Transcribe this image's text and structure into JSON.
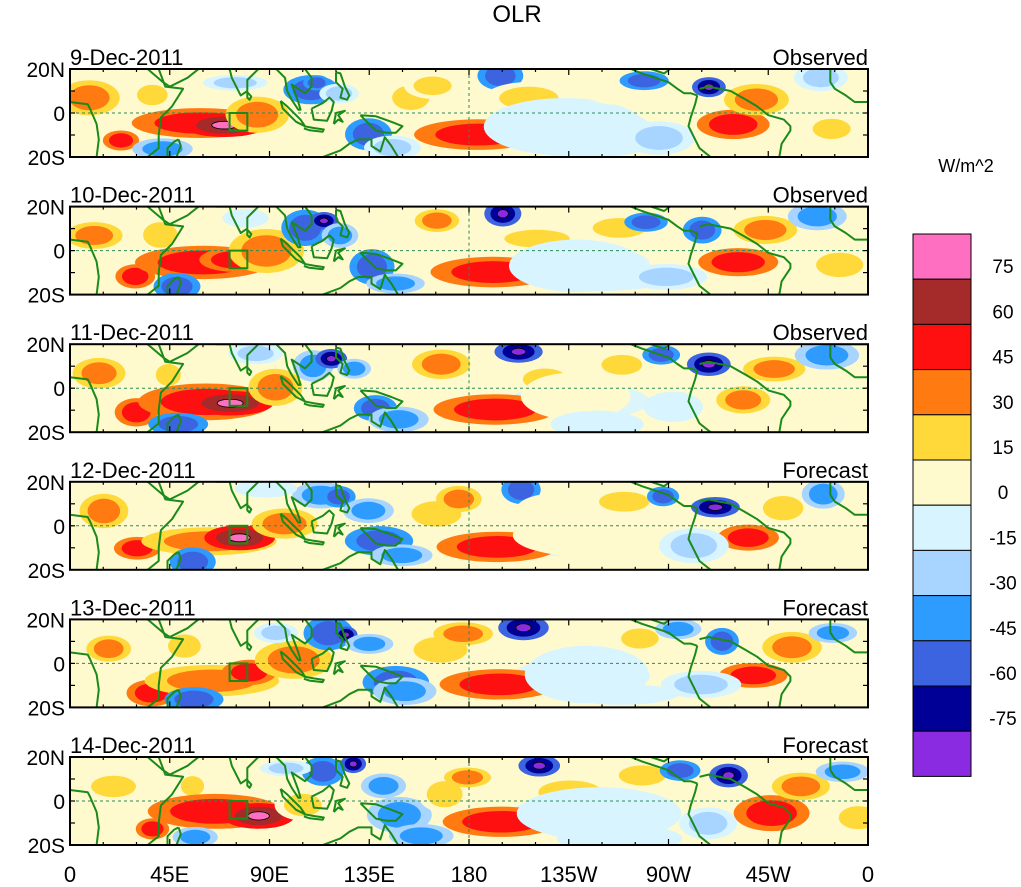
{
  "chart_data": {
    "type": "heatmap",
    "title": "OLR",
    "units": "W/m^2",
    "xlabel": "",
    "ylabel": "",
    "x_ticks": [
      "0",
      "45E",
      "90E",
      "135E",
      "180",
      "135W",
      "90W",
      "45W",
      "0"
    ],
    "y_ticks": [
      "20N",
      "0",
      "20S"
    ],
    "xlim": [
      0,
      360
    ],
    "ylim": [
      -20,
      20
    ],
    "legend": {
      "position": "right",
      "labels": [
        "75",
        "60",
        "45",
        "30",
        "15",
        "0",
        "-15",
        "-30",
        "-45",
        "-60",
        "-75"
      ],
      "colors": [
        "#ff6fc1",
        "#a52a2a",
        "#ff1010",
        "#ff7a10",
        "#ffd93a",
        "#fffacd",
        "#d7f4ff",
        "#a8d5ff",
        "#2e9bff",
        "#3c64e0",
        "#000096",
        "#8a2be2"
      ]
    },
    "panels": [
      {
        "date": "9-Dec-2011",
        "status": "Observed"
      },
      {
        "date": "10-Dec-2011",
        "status": "Observed"
      },
      {
        "date": "11-Dec-2011",
        "status": "Observed"
      },
      {
        "date": "12-Dec-2011",
        "status": "Forecast"
      },
      {
        "date": "13-Dec-2011",
        "status": "Forecast"
      },
      {
        "date": "14-Dec-2011",
        "status": "Forecast"
      }
    ]
  },
  "colors": {
    "coast": "#1a8a1a",
    "ref_line": "#2e8b57",
    "frame": "#000000"
  }
}
